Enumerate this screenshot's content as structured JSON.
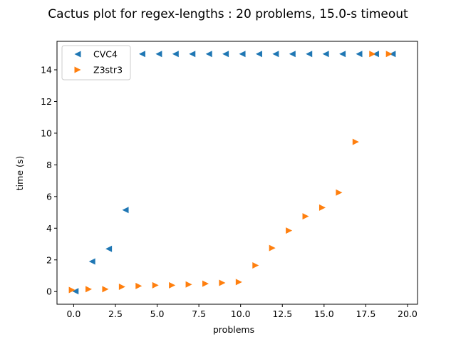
{
  "chart_data": {
    "type": "scatter",
    "title": "Cactus plot for regex-lengths : 20 problems, 15.0-s timeout",
    "xlabel": "problems",
    "ylabel": "time (s)",
    "xlim": [
      -1.0,
      20.6
    ],
    "ylim": [
      -0.8,
      15.8
    ],
    "xticks": [
      0.0,
      2.5,
      5.0,
      7.5,
      10.0,
      12.5,
      15.0,
      17.5,
      20.0
    ],
    "xtick_labels": [
      "0.0",
      "2.5",
      "5.0",
      "7.5",
      "10.0",
      "12.5",
      "15.0",
      "17.5",
      "20.0"
    ],
    "yticks": [
      0,
      2,
      4,
      6,
      8,
      10,
      12,
      14
    ],
    "ytick_labels": [
      "0",
      "2",
      "4",
      "6",
      "8",
      "10",
      "12",
      "14"
    ],
    "grid": false,
    "legend_position": "top-left",
    "series": [
      {
        "name": "CVC4",
        "color": "#1f77b4",
        "marker": "triangle-left",
        "x": [
          0.1,
          1.1,
          2.1,
          3.1,
          4.1,
          5.1,
          6.1,
          7.1,
          8.1,
          9.1,
          10.1,
          11.1,
          12.1,
          13.1,
          14.1,
          15.1,
          16.1,
          17.1,
          18.1,
          19.1
        ],
        "y": [
          0.02,
          1.9,
          2.7,
          5.15,
          15,
          15,
          15,
          15,
          15,
          15,
          15,
          15,
          15,
          15,
          15,
          15,
          15,
          15,
          15,
          15
        ]
      },
      {
        "name": "Z3str3",
        "color": "#ff7f0e",
        "marker": "triangle-right",
        "x": [
          -0.1,
          0.9,
          1.9,
          2.9,
          3.9,
          4.9,
          5.9,
          6.9,
          7.9,
          8.9,
          9.9,
          10.9,
          11.9,
          12.9,
          13.9,
          14.9,
          15.9,
          16.9,
          17.9,
          18.9
        ],
        "y": [
          0.1,
          0.15,
          0.15,
          0.3,
          0.35,
          0.4,
          0.4,
          0.45,
          0.5,
          0.55,
          0.6,
          1.65,
          2.75,
          3.85,
          4.75,
          5.3,
          6.25,
          9.45,
          15,
          15
        ]
      }
    ]
  }
}
